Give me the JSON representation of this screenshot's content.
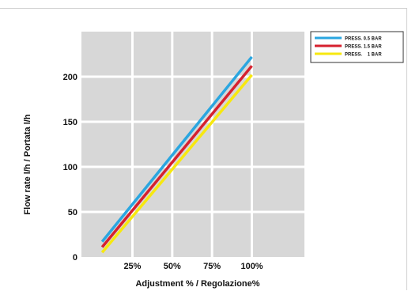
{
  "chart_data": {
    "type": "line",
    "title": "",
    "xlabel": "Adjustment % / Regolazione%",
    "ylabel": "Flow rate l/h  /  Portata l/h",
    "x_tick_labels": [
      "25%",
      "50%",
      "75%",
      "100%"
    ],
    "x_ticks": [
      25,
      50,
      75,
      100
    ],
    "y_ticks": [
      0,
      50,
      100,
      150,
      200
    ],
    "xlim": [
      -7,
      133
    ],
    "ylim": [
      0,
      250
    ],
    "grid": true,
    "legend_position": "top-right",
    "series": [
      {
        "name": "PRESS. 0.5 BAR",
        "color": "#2aa6e0",
        "x": [
          6,
          100
        ],
        "y": [
          17,
          222
        ]
      },
      {
        "name": "PRESS. 1.5 BAR",
        "color": "#d6202e",
        "x": [
          6,
          100
        ],
        "y": [
          11,
          212
        ]
      },
      {
        "name": "PRESS.    1 BAR",
        "color": "#f7e80f",
        "x": [
          6,
          100
        ],
        "y": [
          5,
          202
        ]
      }
    ]
  }
}
